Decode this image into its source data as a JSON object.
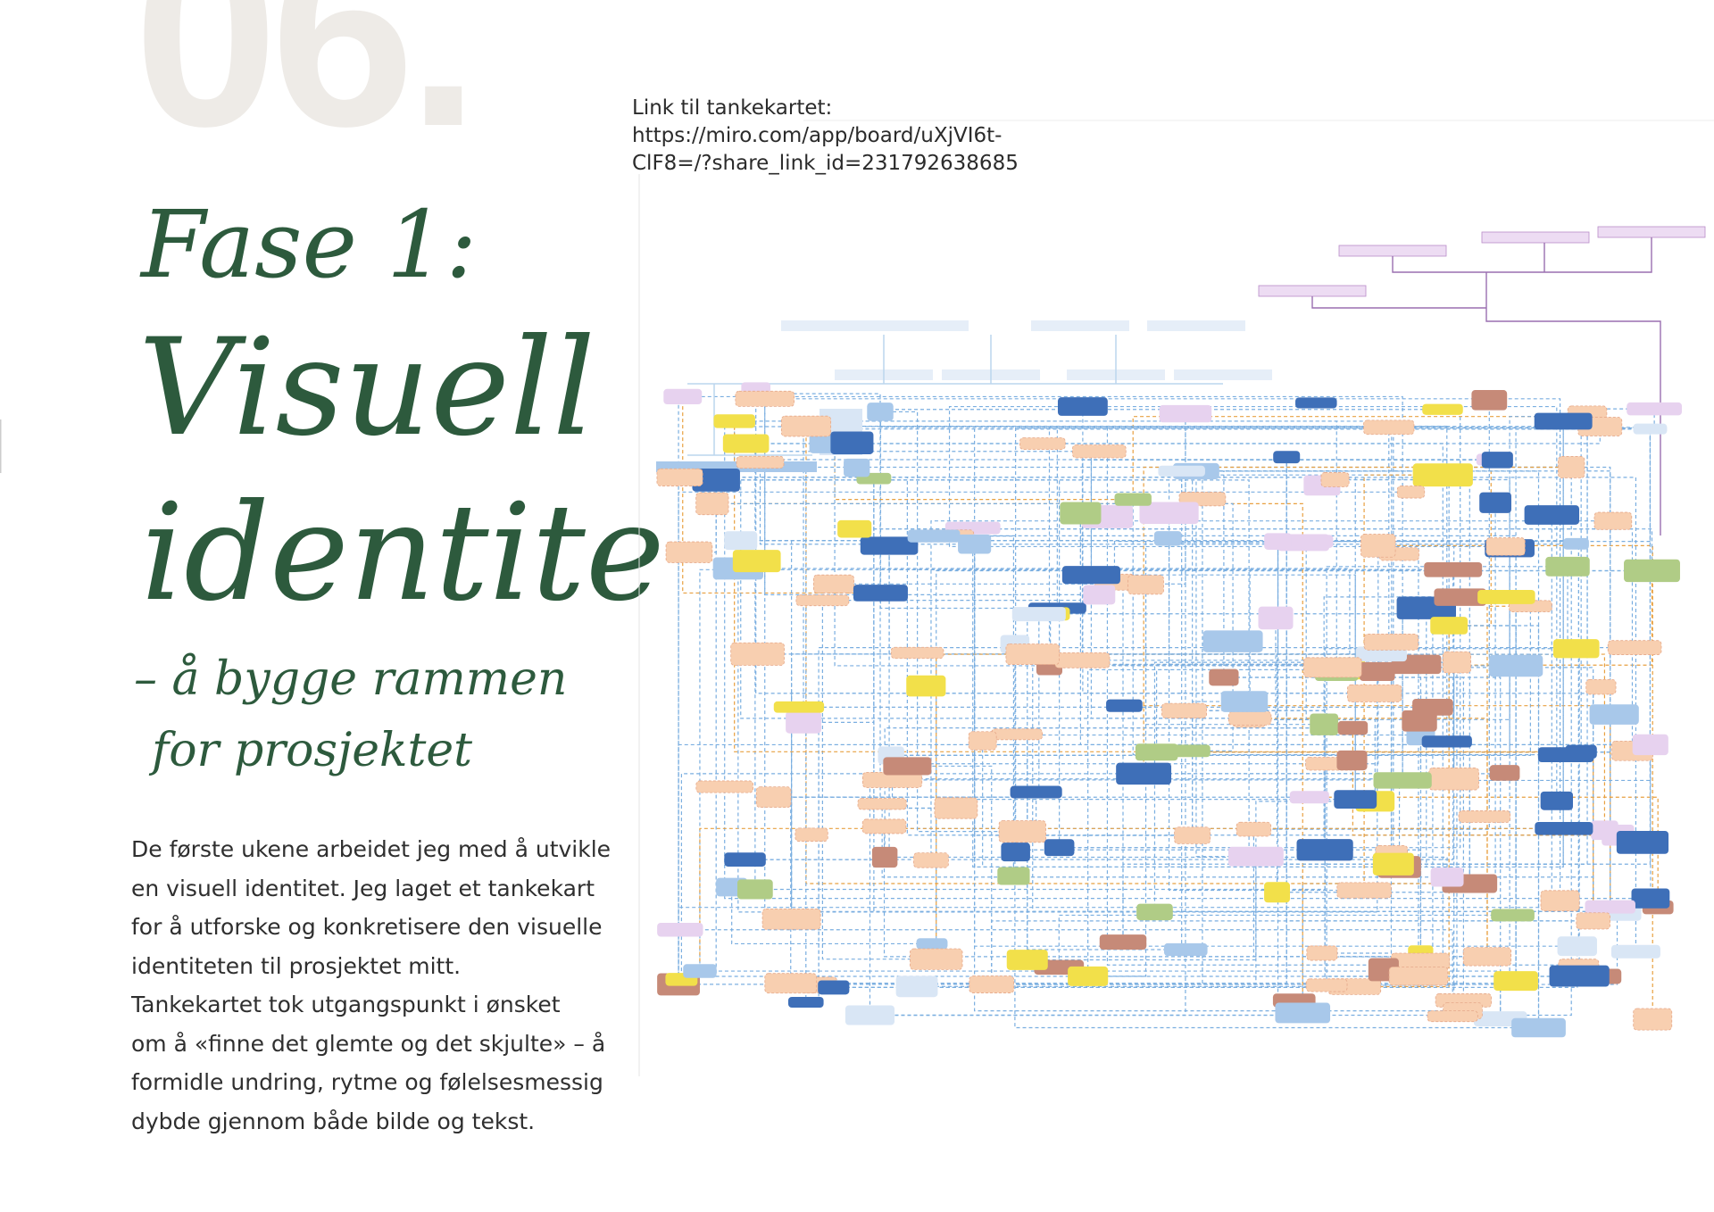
{
  "page": {
    "number": "06.",
    "link_label": "Link til tankekartet:",
    "link_url_line1": "https://miro.com/app/board/uXjVI6t-",
    "link_url_line2": "ClF8=/?share_link_id=231792638685",
    "title_line1": "Fase 1:",
    "title_line2": "Visuell",
    "title_line3": "identite",
    "subtitle_line1": "– å bygge rammen",
    "subtitle_line2": "for prosjektet",
    "body": [
      "De første ukene arbeidet jeg med å utvikle",
      "en visuell identitet. Jeg laget et tankekart",
      "for å utforske og konkretisere den visuelle",
      "identiteten til prosjektet mitt.",
      "Tankekartet tok utgangspunkt i ønsket",
      "om å «finne det glemte og det skjulte» – å",
      "formidle undring, rytme og følelsesmessig",
      "dybde gjennom både bilde og tekst."
    ]
  }
}
